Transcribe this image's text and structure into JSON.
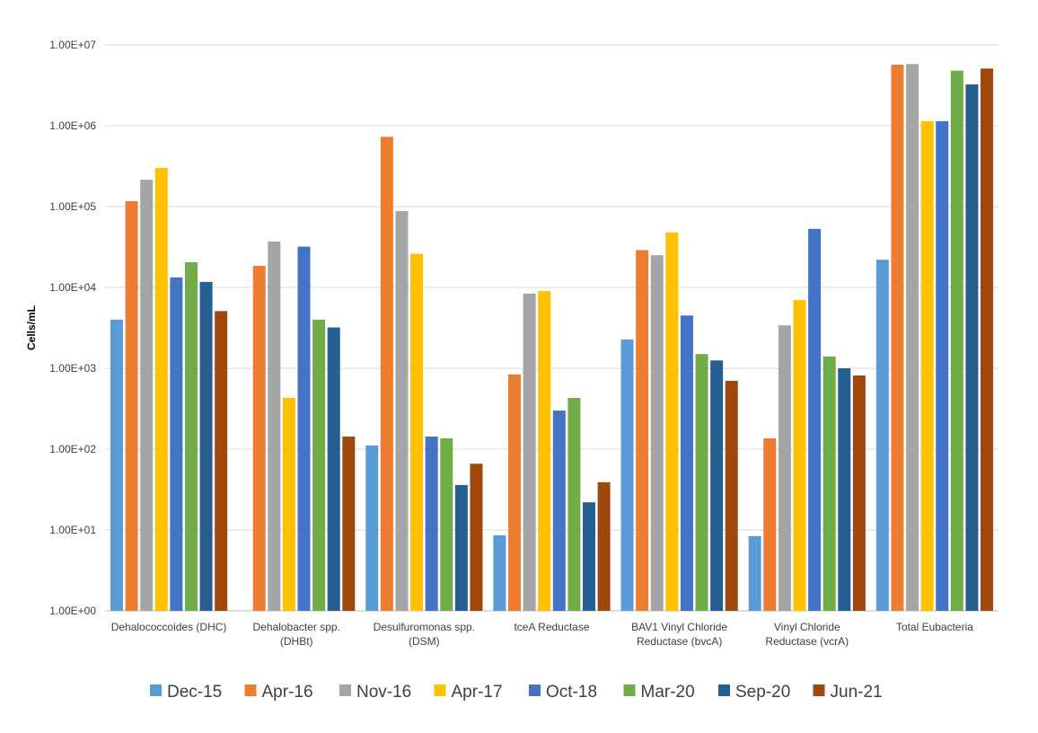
{
  "chart_data": {
    "type": "bar",
    "title": "",
    "xlabel": "",
    "ylabel": "Cells/mL",
    "yscale": "log",
    "ylim": [
      1,
      10000000
    ],
    "yticks": [
      "1.00E+00",
      "1.00E+01",
      "1.00E+02",
      "1.00E+03",
      "1.00E+04",
      "1.00E+05",
      "1.00E+06",
      "1.00E+07"
    ],
    "grid": true,
    "legend_position": "bottom",
    "categories": [
      [
        "Dehalococcoides (DHC)"
      ],
      [
        "Dehalobacter spp.",
        "(DHBt)"
      ],
      [
        "Desulfuromonas spp.",
        "(DSM)"
      ],
      [
        "tceA Reductase"
      ],
      [
        "BAV1 Vinyl Chloride",
        "Reductase (bvcA)"
      ],
      [
        "Vinyl Chloride",
        "Reductase (vcrA)"
      ],
      [
        "Total Eubacteria"
      ]
    ],
    "series": [
      {
        "name": "Dec-15",
        "color": "#5B9BD5",
        "values": [
          4000,
          null,
          111,
          8.6,
          2270,
          8.4,
          22000
        ]
      },
      {
        "name": "Apr-16",
        "color": "#ED7D31",
        "values": [
          117000,
          18500,
          730000,
          840,
          29000,
          136,
          5700000
        ]
      },
      {
        "name": "Nov-16",
        "color": "#A5A5A5",
        "values": [
          215000,
          37000,
          88000,
          8400,
          25000,
          3400,
          5800000
        ]
      },
      {
        "name": "Apr-17",
        "color": "#FFC000",
        "values": [
          300000,
          430,
          26000,
          9000,
          48000,
          7000,
          1140000
        ]
      },
      {
        "name": "Oct-18",
        "color": "#4472C4",
        "values": [
          13300,
          32000,
          143,
          300,
          4500,
          53000,
          1140000
        ]
      },
      {
        "name": "Mar-20",
        "color": "#70AD47",
        "values": [
          20500,
          4000,
          136,
          430,
          1500,
          1400,
          4800000
        ]
      },
      {
        "name": "Sep-20",
        "color": "#255E91",
        "values": [
          11700,
          3200,
          36,
          22,
          1250,
          1000,
          3250000
        ]
      },
      {
        "name": "Jun-21",
        "color": "#9E480E",
        "values": [
          5100,
          143,
          66,
          39,
          700,
          815,
          5100000
        ]
      }
    ]
  }
}
